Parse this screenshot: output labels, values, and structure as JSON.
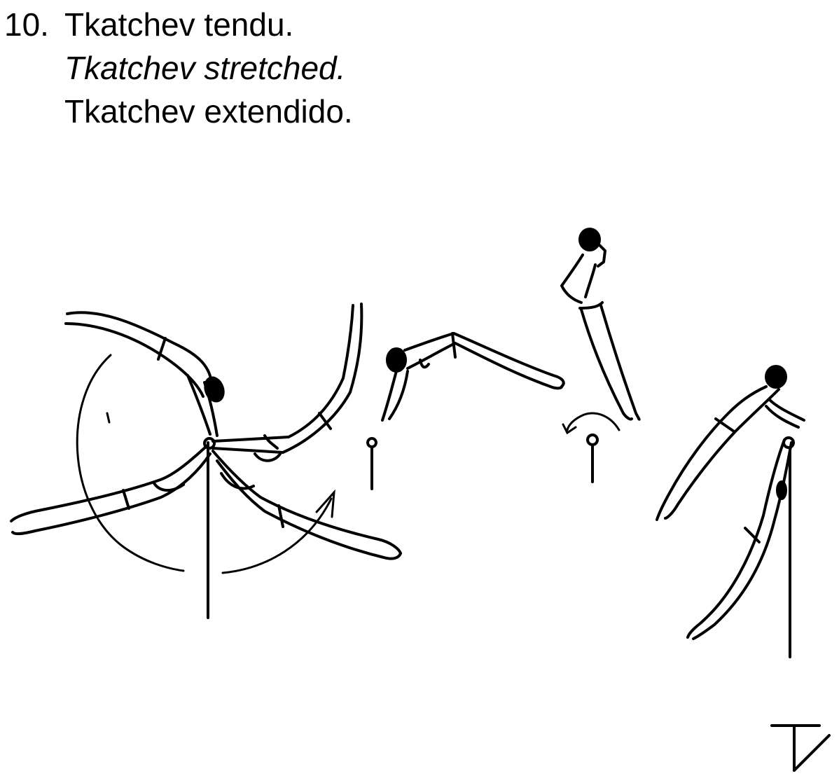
{
  "element": {
    "number": "10.",
    "name_fr": "Tkatchev tendu.",
    "name_en": "Tkatchev stretched.",
    "name_es": "Tkatchev extendido."
  },
  "symbol": {
    "icon": "tkatchev-symbol"
  }
}
